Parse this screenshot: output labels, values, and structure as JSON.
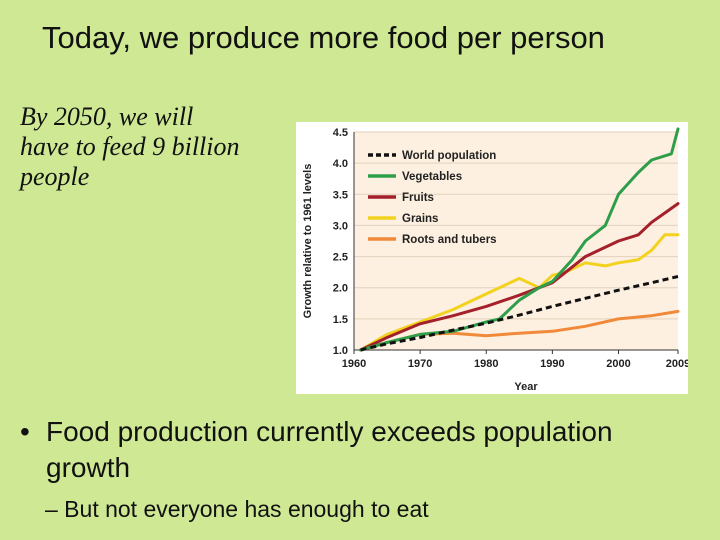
{
  "slide": {
    "title": "Today, we produce more food per person",
    "note": "By 2050, we will have to feed 9 billion people",
    "bullet_marker": "•",
    "bullet": "Food production currently exceeds population growth",
    "sub_bullet": "– But not everyone has enough to eat"
  },
  "colors": {
    "background": "#cfe894",
    "plot_bg": "#fdf0e0",
    "World population": "#111111",
    "Vegetables": "#2e9e4a",
    "Fruits": "#a4202a",
    "Grains": "#f2d21e",
    "Roots and tubers": "#f08a3a"
  },
  "chart_data": {
    "type": "line",
    "title": "",
    "xlabel": "Year",
    "ylabel": "Growth relative to 1961 levels",
    "xlim": [
      1960,
      2009
    ],
    "ylim": [
      1.0,
      4.5
    ],
    "xticks": [
      "1960",
      "1970",
      "1980",
      "1990",
      "2000",
      "2009"
    ],
    "yticks": [
      "1.0",
      "1.5",
      "2.0",
      "2.5",
      "3.0",
      "3.5",
      "4.0",
      "4.5"
    ],
    "grid": "horizontal",
    "legend_position": "top-left",
    "series": [
      {
        "name": "World population",
        "style": "dashed",
        "x": [
          1961,
          1965,
          1970,
          1975,
          1980,
          1985,
          1990,
          1995,
          2000,
          2005,
          2009
        ],
        "y": [
          1.0,
          1.1,
          1.2,
          1.32,
          1.43,
          1.56,
          1.7,
          1.83,
          1.96,
          2.08,
          2.18
        ]
      },
      {
        "name": "Vegetables",
        "style": "solid",
        "x": [
          1961,
          1965,
          1970,
          1975,
          1980,
          1982,
          1985,
          1988,
          1990,
          1993,
          1995,
          1998,
          2000,
          2003,
          2005,
          2008,
          2009
        ],
        "y": [
          1.0,
          1.12,
          1.25,
          1.3,
          1.45,
          1.5,
          1.8,
          2.0,
          2.1,
          2.45,
          2.75,
          3.0,
          3.5,
          3.85,
          4.05,
          4.15,
          4.55
        ]
      },
      {
        "name": "Fruits",
        "style": "solid",
        "x": [
          1961,
          1965,
          1970,
          1975,
          1980,
          1985,
          1990,
          1995,
          2000,
          2003,
          2005,
          2007,
          2009
        ],
        "y": [
          1.0,
          1.2,
          1.42,
          1.55,
          1.7,
          1.88,
          2.08,
          2.5,
          2.75,
          2.85,
          3.05,
          3.2,
          3.35
        ]
      },
      {
        "name": "Grains",
        "style": "solid",
        "x": [
          1961,
          1965,
          1970,
          1975,
          1980,
          1983,
          1985,
          1988,
          1990,
          1992,
          1995,
          1998,
          2000,
          2003,
          2005,
          2007,
          2009
        ],
        "y": [
          1.0,
          1.25,
          1.45,
          1.65,
          1.9,
          2.05,
          2.15,
          2.0,
          2.2,
          2.25,
          2.4,
          2.35,
          2.4,
          2.45,
          2.6,
          2.85,
          2.85
        ]
      },
      {
        "name": "Roots and tubers",
        "style": "solid",
        "x": [
          1961,
          1965,
          1970,
          1975,
          1980,
          1985,
          1990,
          1995,
          2000,
          2005,
          2009
        ],
        "y": [
          1.0,
          1.12,
          1.25,
          1.27,
          1.23,
          1.27,
          1.3,
          1.38,
          1.5,
          1.55,
          1.62
        ]
      }
    ]
  }
}
